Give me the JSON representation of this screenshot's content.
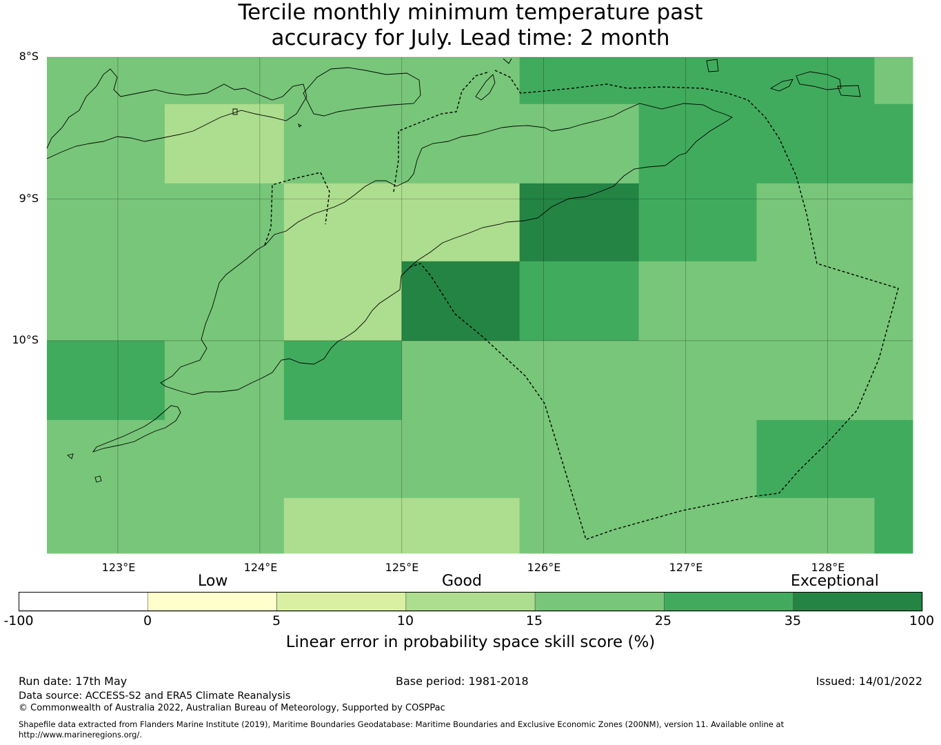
{
  "title_line1": "Tercile monthly minimum temperature past",
  "title_line2": "accuracy for July. Lead time: 2 month",
  "map": {
    "lon_range": [
      122.5,
      128.6
    ],
    "lat_range": [
      -8.0,
      -11.5
    ],
    "cell_lon_edges": [
      122.5,
      123.33,
      124.17,
      125.0,
      125.83,
      126.67,
      127.5,
      128.33,
      128.6
    ],
    "cell_lat_edges": [
      -8.0,
      -8.33,
      -8.89,
      -9.44,
      -10.0,
      -10.56,
      -11.11,
      -11.5
    ],
    "skill_grid": [
      [
        18,
        18,
        18,
        18,
        28,
        28,
        28,
        18
      ],
      [
        18,
        12,
        18,
        18,
        18,
        28,
        28,
        28
      ],
      [
        18,
        18,
        12,
        12,
        38,
        28,
        18,
        18
      ],
      [
        18,
        18,
        12,
        38,
        28,
        18,
        18,
        18
      ],
      [
        28,
        18,
        28,
        18,
        18,
        18,
        18,
        18
      ],
      [
        18,
        18,
        18,
        18,
        18,
        18,
        28,
        28
      ],
      [
        18,
        18,
        12,
        12,
        18,
        18,
        18,
        28
      ]
    ],
    "lat_ticks": [
      {
        "value": -8,
        "label": "8°S"
      },
      {
        "value": -9,
        "label": "9°S"
      },
      {
        "value": -10,
        "label": "10°S"
      }
    ],
    "lon_ticks": [
      {
        "value": 123,
        "label": "123°E"
      },
      {
        "value": 124,
        "label": "124°E"
      },
      {
        "value": 125,
        "label": "125°E"
      },
      {
        "value": 126,
        "label": "126°E"
      },
      {
        "value": 127,
        "label": "127°E"
      },
      {
        "value": 128,
        "label": "128°E"
      }
    ]
  },
  "colorbar": {
    "categories": [
      "Low",
      "Good",
      "Exceptional"
    ],
    "ticks": [
      "-100",
      "0",
      "5",
      "10",
      "15",
      "25",
      "35",
      "100"
    ],
    "colors": [
      "#ffffff",
      "#ffffcc",
      "#d9f0a3",
      "#addd8e",
      "#78c679",
      "#41ab5d",
      "#238443"
    ],
    "label": "Linear error in probability space skill score (%)"
  },
  "footer": {
    "run_date": "Run date: 17th May",
    "base_period": "Base period: 1981-2018",
    "issued": "Issued: 14/01/2022",
    "data_source": "Data source: ACCESS-S2 and ERA5 Climate Reanalysis",
    "copyright": "© Commonwealth of Australia 2022, Australian Bureau of Meteorology, Supported by COSPPac",
    "shapefile_note": "Shapefile data extracted from Flanders Marine Institute (2019), Maritime Boundaries Geodatabase: Maritime Boundaries and Exclusive Economic Zones (200NM), version 11. Available online at http://www.marineregions.org/."
  }
}
